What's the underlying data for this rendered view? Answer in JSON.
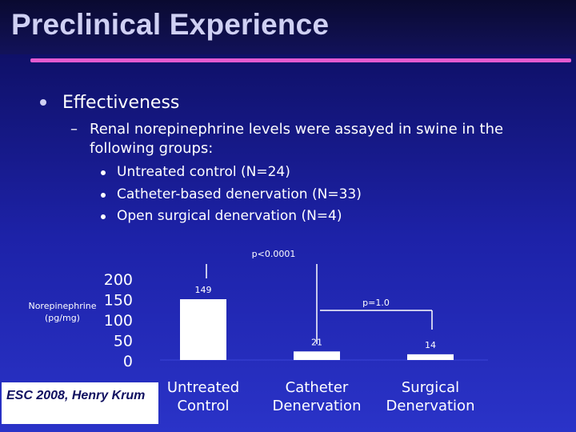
{
  "slide": {
    "title": "Preclinical Experience",
    "bullet1": "Effectiveness",
    "dash": "–",
    "bullet2": "Renal norepinephrine levels were assayed in swine in the following groups:",
    "subbullets": [
      "Untreated control (N=24)",
      "Catheter-based denervation (N=33)",
      "Open surgical denervation (N=4)"
    ],
    "footer": "ESC 2008, Henry Krum"
  },
  "colors": {
    "background_top": "#0b0b55",
    "background_bottom": "#2a33c8",
    "title": "#cfd0f3",
    "title_rule": "#e35bd0",
    "bars": "#ffffff"
  },
  "chart_data": {
    "type": "bar",
    "ylabel": "Norepinephrine (pg/mg)",
    "yticks": [
      200,
      150,
      100,
      50,
      0
    ],
    "ylim": [
      0,
      200
    ],
    "categories": [
      "Untreated Control",
      "Catheter Denervation",
      "Surgical Denervation"
    ],
    "values": [
      149,
      21,
      14
    ],
    "value_labels": [
      "149",
      "21",
      "14"
    ],
    "annotations": [
      "p<0.0001",
      "p=1.0"
    ],
    "grid": false,
    "legend": false
  }
}
